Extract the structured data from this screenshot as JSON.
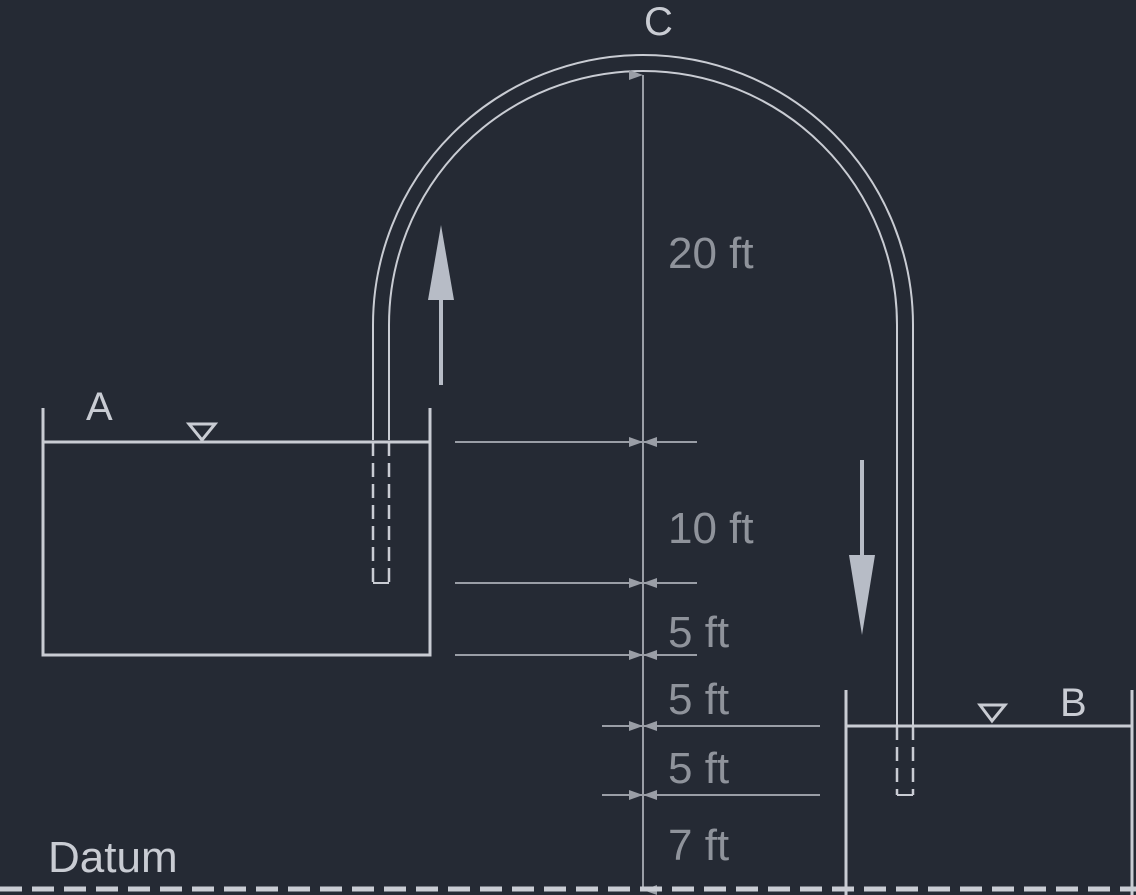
{
  "labels": {
    "point_c": "C",
    "tank_a": "A",
    "tank_b": "B",
    "datum": "Datum"
  },
  "dimensions": {
    "d1": "20 ft",
    "d2": "10 ft",
    "d3": "5 ft",
    "d4": "5 ft",
    "d5": "5 ft",
    "d6": "7 ft"
  },
  "colors": {
    "background": "#252a34",
    "lines": "#c9ccd3",
    "arrows": "#b7bcc6",
    "dimension_text": "#8f939b"
  }
}
